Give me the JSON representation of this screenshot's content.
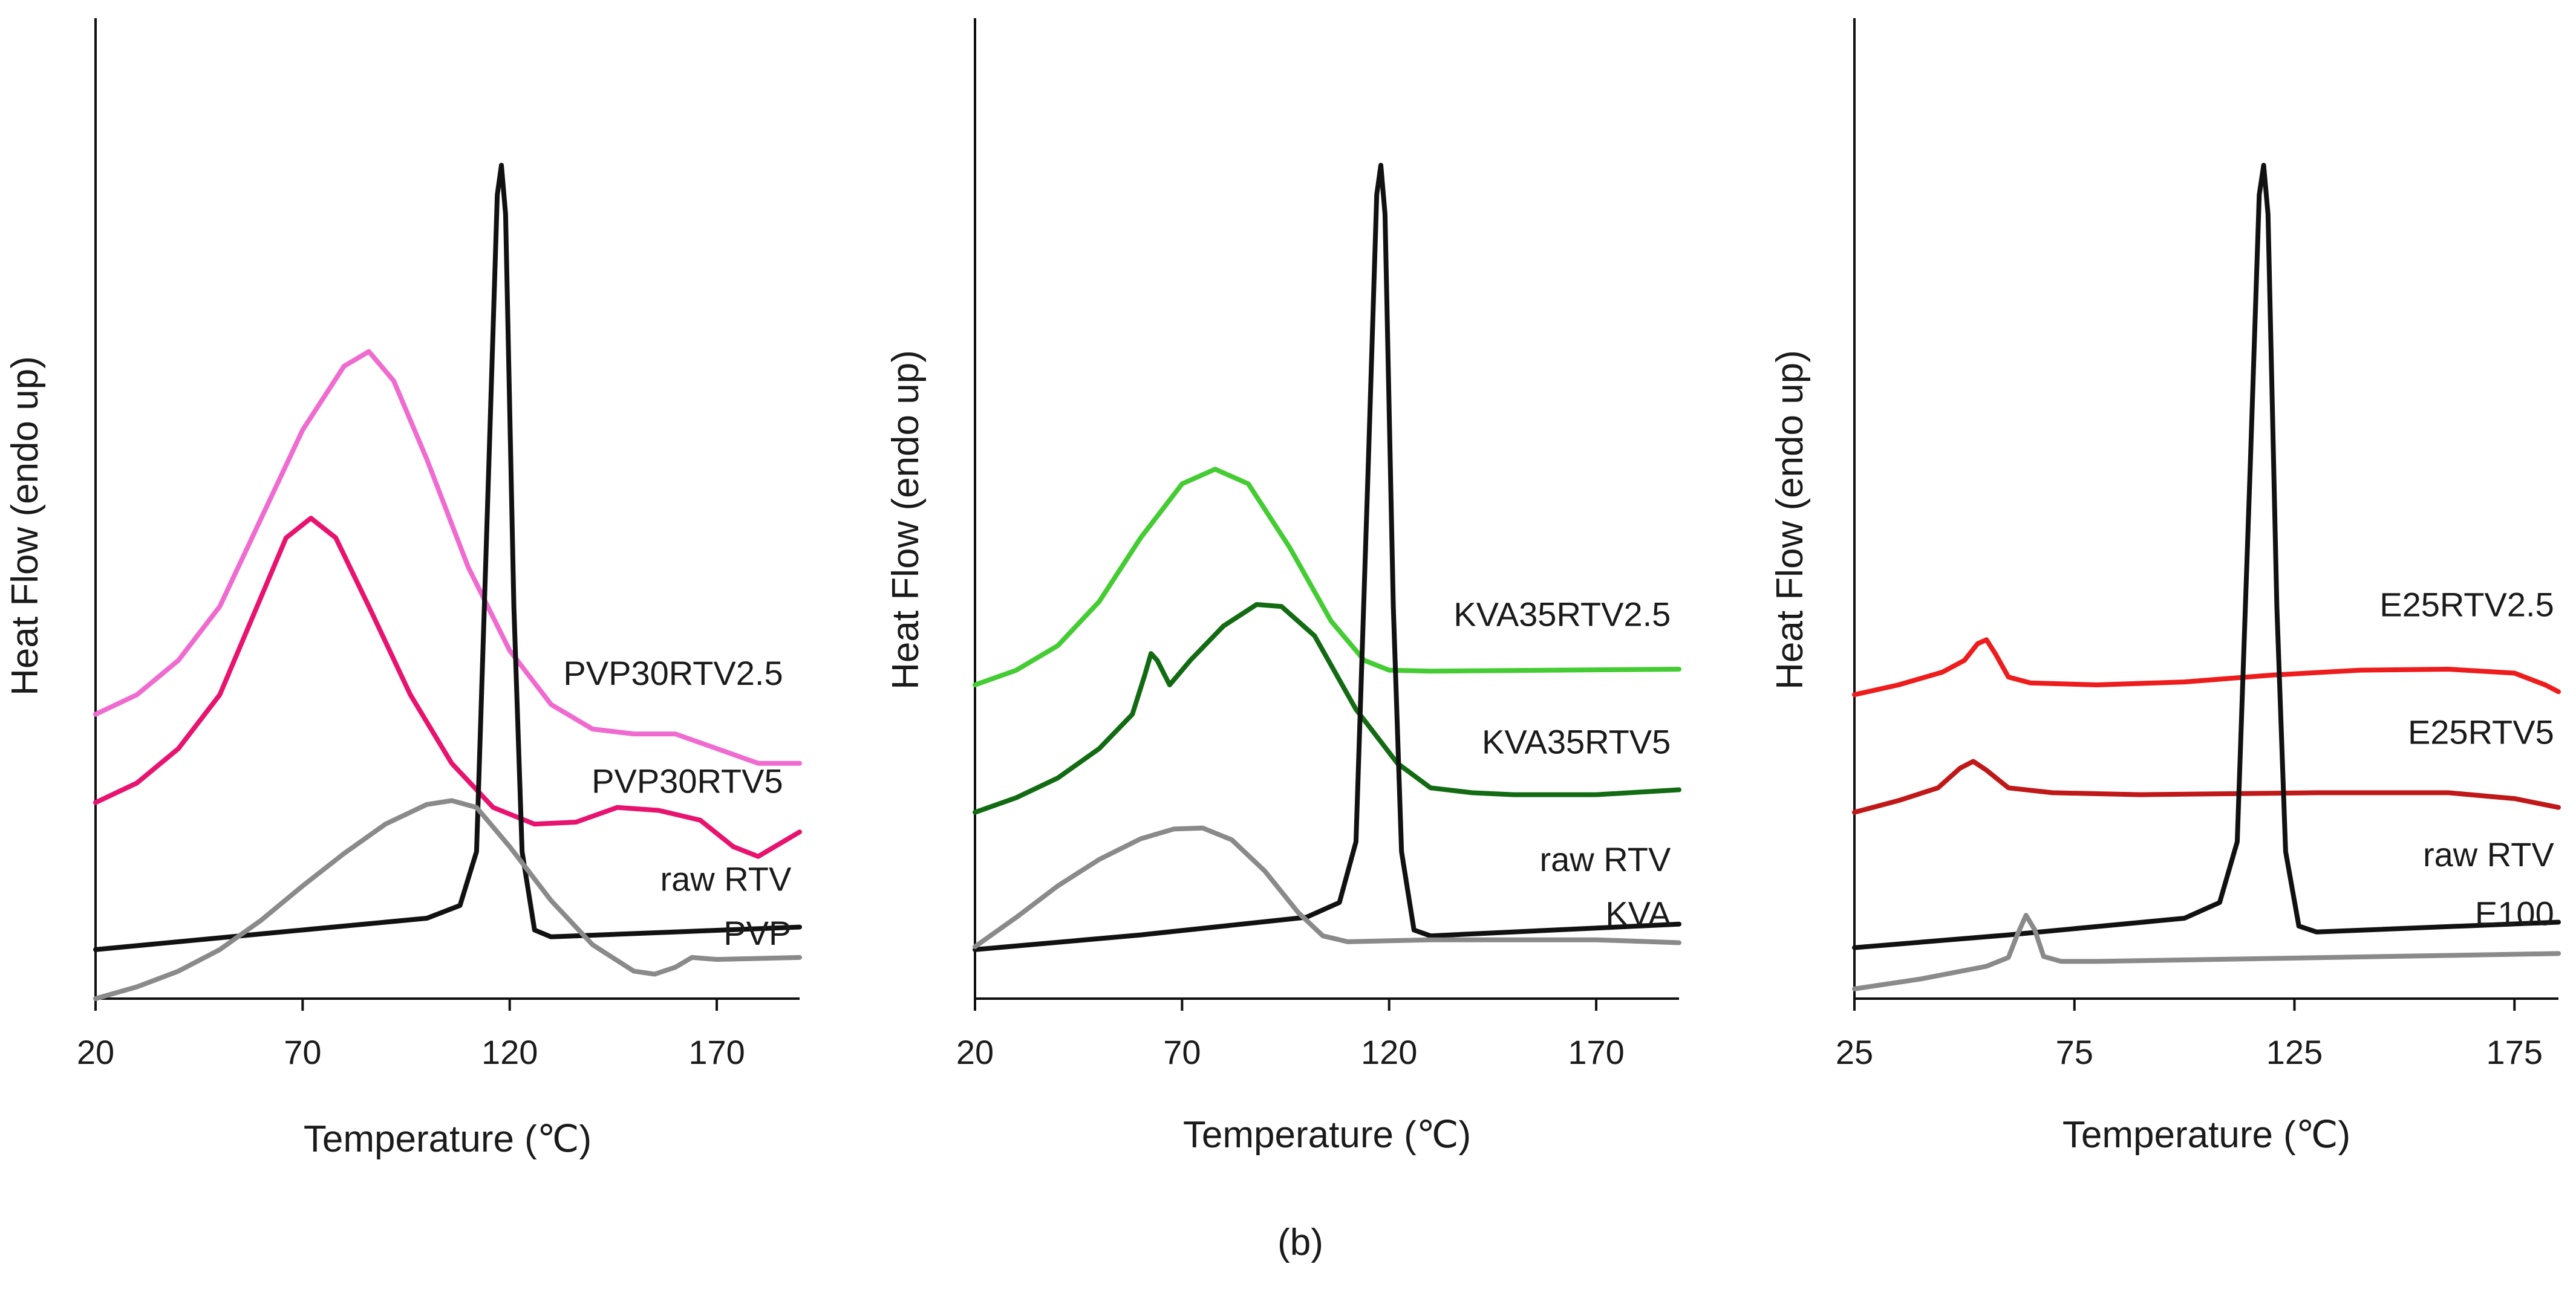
{
  "figure": {
    "caption": "(b)"
  },
  "chart_data": [
    {
      "type": "line",
      "id": "pvp",
      "xlabel": "Temperature (℃)",
      "ylabel": "Heat Flow (endo up)",
      "xlim": [
        20,
        190
      ],
      "ylim": [
        0,
        100
      ],
      "xticks": [
        20,
        70,
        120,
        170
      ],
      "grid": false,
      "series": [
        {
          "name": "PVP30RTV2.5",
          "color": "#f06bd0",
          "points": [
            [
              20,
              29
            ],
            [
              30,
              31
            ],
            [
              40,
              34.5
            ],
            [
              50,
              40
            ],
            [
              60,
              49
            ],
            [
              70,
              58
            ],
            [
              80,
              64.5
            ],
            [
              86,
              66
            ],
            [
              92,
              63
            ],
            [
              100,
              55
            ],
            [
              110,
              44
            ],
            [
              120,
              35.5
            ],
            [
              130,
              30
            ],
            [
              140,
              27.5
            ],
            [
              150,
              27
            ],
            [
              160,
              27
            ],
            [
              170,
              25.5
            ],
            [
              180,
              24
            ],
            [
              190,
              24
            ]
          ]
        },
        {
          "name": "PVP30RTV5",
          "color": "#e8136f",
          "points": [
            [
              20,
              20
            ],
            [
              30,
              22
            ],
            [
              40,
              25.5
            ],
            [
              50,
              31
            ],
            [
              60,
              41
            ],
            [
              66,
              47
            ],
            [
              72,
              49
            ],
            [
              78,
              47
            ],
            [
              86,
              40
            ],
            [
              96,
              31
            ],
            [
              106,
              24
            ],
            [
              116,
              19.5
            ],
            [
              126,
              17.8
            ],
            [
              136,
              18
            ],
            [
              146,
              19.5
            ],
            [
              156,
              19.2
            ],
            [
              166,
              18.2
            ],
            [
              174,
              15.5
            ],
            [
              180,
              14.5
            ],
            [
              186,
              16
            ],
            [
              190,
              17
            ]
          ]
        },
        {
          "name": "raw RTV",
          "color": "#111111",
          "points": [
            [
              20,
              5
            ],
            [
              60,
              6.6
            ],
            [
              100,
              8.2
            ],
            [
              108,
              9.5
            ],
            [
              112,
              15
            ],
            [
              115,
              55
            ],
            [
              117,
              82
            ],
            [
              118,
              85
            ],
            [
              119,
              80
            ],
            [
              121,
              40
            ],
            [
              123,
              15
            ],
            [
              126,
              7
            ],
            [
              130,
              6.3
            ],
            [
              190,
              7.3
            ]
          ]
        },
        {
          "name": "PVP",
          "color": "#8a8a8a",
          "points": [
            [
              20,
              0
            ],
            [
              30,
              1.2
            ],
            [
              40,
              2.8
            ],
            [
              50,
              5
            ],
            [
              60,
              8
            ],
            [
              70,
              11.5
            ],
            [
              80,
              14.8
            ],
            [
              90,
              17.8
            ],
            [
              100,
              19.8
            ],
            [
              106,
              20.2
            ],
            [
              112,
              19.5
            ],
            [
              120,
              15.5
            ],
            [
              130,
              10
            ],
            [
              140,
              5.5
            ],
            [
              150,
              2.8
            ],
            [
              155,
              2.5
            ],
            [
              160,
              3.2
            ],
            [
              164,
              4.2
            ],
            [
              170,
              4
            ],
            [
              190,
              4.2
            ]
          ]
        }
      ],
      "labels": [
        {
          "series": "PVP30RTV2.5",
          "text": "PVP30RTV2.5",
          "x": 186,
          "y": 32
        },
        {
          "series": "PVP30RTV5",
          "text": "PVP30RTV5",
          "x": 186,
          "y": 21
        },
        {
          "series": "raw RTV",
          "text": "raw RTV",
          "x": 188,
          "y": 11
        },
        {
          "series": "PVP",
          "text": "PVP",
          "x": 188,
          "y": 5.5
        }
      ]
    },
    {
      "type": "line",
      "id": "kva",
      "xlabel": "Temperature (℃)",
      "ylabel": "Heat Flow (endo up)",
      "xlim": [
        20,
        190
      ],
      "ylim": [
        0,
        100
      ],
      "xticks": [
        20,
        70,
        120,
        170
      ],
      "grid": false,
      "series": [
        {
          "name": "KVA35RTV2.5",
          "color": "#44cc33",
          "points": [
            [
              20,
              32
            ],
            [
              30,
              33.5
            ],
            [
              40,
              36
            ],
            [
              50,
              40.5
            ],
            [
              60,
              47
            ],
            [
              70,
              52.5
            ],
            [
              78,
              54
            ],
            [
              86,
              52.5
            ],
            [
              96,
              46
            ],
            [
              106,
              38.5
            ],
            [
              114,
              34.5
            ],
            [
              120,
              33.5
            ],
            [
              130,
              33.4
            ],
            [
              190,
              33.6
            ]
          ]
        },
        {
          "name": "KVA35RTV5",
          "color": "#126b12",
          "points": [
            [
              20,
              19
            ],
            [
              30,
              20.5
            ],
            [
              40,
              22.5
            ],
            [
              50,
              25.5
            ],
            [
              58,
              29
            ],
            [
              61,
              33
            ],
            [
              62.5,
              35.2
            ],
            [
              64,
              34.5
            ],
            [
              67,
              32
            ],
            [
              72,
              34.5
            ],
            [
              80,
              38
            ],
            [
              88,
              40.2
            ],
            [
              94,
              40
            ],
            [
              102,
              37
            ],
            [
              112,
              29.5
            ],
            [
              122,
              24
            ],
            [
              130,
              21.5
            ],
            [
              140,
              21
            ],
            [
              150,
              20.8
            ],
            [
              170,
              20.8
            ],
            [
              190,
              21.3
            ]
          ]
        },
        {
          "name": "raw RTV",
          "color": "#111111",
          "points": [
            [
              20,
              5
            ],
            [
              60,
              6.5
            ],
            [
              100,
              8.3
            ],
            [
              108,
              9.8
            ],
            [
              112,
              16
            ],
            [
              115,
              55
            ],
            [
              117,
              82
            ],
            [
              118,
              85
            ],
            [
              119,
              80
            ],
            [
              121,
              40
            ],
            [
              123,
              15
            ],
            [
              126,
              7
            ],
            [
              130,
              6.4
            ],
            [
              190,
              7.6
            ]
          ]
        },
        {
          "name": "KVA",
          "color": "#8a8a8a",
          "points": [
            [
              20,
              5.3
            ],
            [
              30,
              8.3
            ],
            [
              40,
              11.5
            ],
            [
              50,
              14.2
            ],
            [
              60,
              16.3
            ],
            [
              68,
              17.3
            ],
            [
              75,
              17.4
            ],
            [
              82,
              16.2
            ],
            [
              90,
              13
            ],
            [
              98,
              8.8
            ],
            [
              104,
              6.4
            ],
            [
              110,
              5.8
            ],
            [
              130,
              6
            ],
            [
              170,
              6
            ],
            [
              190,
              5.7
            ]
          ]
        }
      ],
      "labels": [
        {
          "series": "KVA35RTV2.5",
          "text": "KVA35RTV2.5",
          "x": 188,
          "y": 38
        },
        {
          "series": "KVA35RTV5",
          "text": "KVA35RTV5",
          "x": 188,
          "y": 25
        },
        {
          "series": "raw RTV",
          "text": "raw RTV",
          "x": 188,
          "y": 13
        },
        {
          "series": "KVA",
          "text": "KVA",
          "x": 188,
          "y": 7.5
        }
      ]
    },
    {
      "type": "line",
      "id": "e100",
      "xlabel": "Temperature (℃)",
      "ylabel": "Heat Flow (endo up)",
      "xlim": [
        25,
        185
      ],
      "ylim": [
        0,
        100
      ],
      "xticks": [
        25,
        75,
        125,
        175
      ],
      "grid": false,
      "series": [
        {
          "name": "E25RTV2.5",
          "color": "#ee1c1c",
          "points": [
            [
              25,
              31
            ],
            [
              35,
              32
            ],
            [
              45,
              33.3
            ],
            [
              50,
              34.5
            ],
            [
              53,
              36.2
            ],
            [
              55,
              36.6
            ],
            [
              57,
              35.2
            ],
            [
              60,
              32.8
            ],
            [
              65,
              32.2
            ],
            [
              80,
              32
            ],
            [
              100,
              32.3
            ],
            [
              120,
              33
            ],
            [
              140,
              33.5
            ],
            [
              160,
              33.6
            ],
            [
              175,
              33.2
            ],
            [
              182,
              32
            ],
            [
              185,
              31.3
            ]
          ]
        },
        {
          "name": "E25RTV5",
          "color": "#c01818",
          "points": [
            [
              25,
              19
            ],
            [
              35,
              20.2
            ],
            [
              44,
              21.5
            ],
            [
              49,
              23.5
            ],
            [
              52,
              24.2
            ],
            [
              55,
              23.3
            ],
            [
              60,
              21.5
            ],
            [
              70,
              21
            ],
            [
              90,
              20.8
            ],
            [
              110,
              20.9
            ],
            [
              130,
              21
            ],
            [
              160,
              21
            ],
            [
              175,
              20.4
            ],
            [
              185,
              19.5
            ]
          ]
        },
        {
          "name": "raw RTV",
          "color": "#111111",
          "points": [
            [
              25,
              5.2
            ],
            [
              60,
              6.5
            ],
            [
              100,
              8.2
            ],
            [
              108,
              9.8
            ],
            [
              112,
              16
            ],
            [
              115,
              55
            ],
            [
              117,
              82
            ],
            [
              118,
              85
            ],
            [
              119,
              80
            ],
            [
              121,
              40
            ],
            [
              123,
              15
            ],
            [
              126,
              7.4
            ],
            [
              130,
              6.8
            ],
            [
              185,
              7.8
            ]
          ]
        },
        {
          "name": "E100",
          "color": "#8a8a8a",
          "points": [
            [
              25,
              1
            ],
            [
              40,
              2
            ],
            [
              55,
              3.3
            ],
            [
              60,
              4.2
            ],
            [
              62,
              6.5
            ],
            [
              64,
              8.5
            ],
            [
              66,
              7
            ],
            [
              68,
              4.3
            ],
            [
              72,
              3.8
            ],
            [
              80,
              3.8
            ],
            [
              120,
              4.1
            ],
            [
              185,
              4.6
            ]
          ]
        }
      ],
      "labels": [
        {
          "series": "E25RTV2.5",
          "text": "E25RTV2.5",
          "x": 184,
          "y": 39
        },
        {
          "series": "E25RTV5",
          "text": "E25RTV5",
          "x": 184,
          "y": 26
        },
        {
          "series": "raw RTV",
          "text": "raw RTV",
          "x": 184,
          "y": 13.5
        },
        {
          "series": "E100",
          "text": "E100",
          "x": 184,
          "y": 7.5
        }
      ]
    }
  ]
}
